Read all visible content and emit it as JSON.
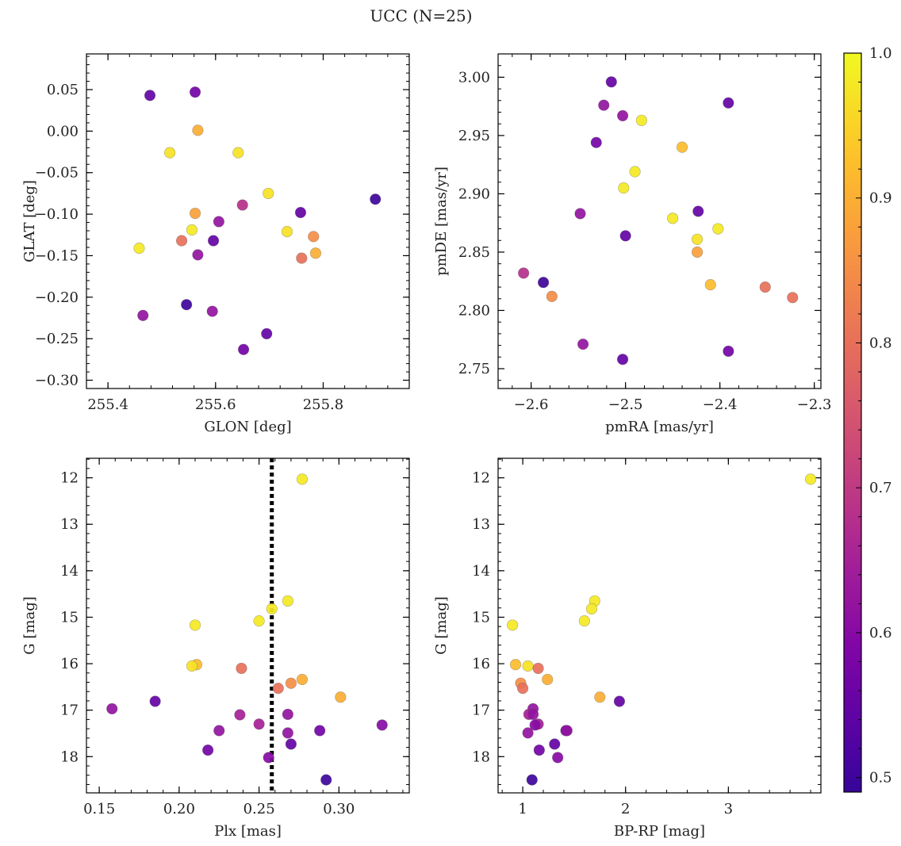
{
  "figure": {
    "title": "UCC (N=25)"
  },
  "colorbar": {
    "min": 0.49,
    "max": 1.0,
    "ticks": [
      "0.5",
      "0.6",
      "0.7",
      "0.8",
      "0.9",
      "1.0"
    ]
  },
  "chart_data": [
    {
      "type": "scatter",
      "xlabel": "GLON [deg]",
      "ylabel": "GLAT [deg]",
      "xlim": [
        255.36,
        255.96
      ],
      "ylim": [
        -0.31,
        0.093
      ],
      "xticks": [
        "255.4",
        "255.6",
        "255.8"
      ],
      "yticks": [
        "0.05",
        "0.00",
        "−0.05",
        "−0.10",
        "−0.15",
        "−0.20",
        "−0.25",
        "−0.30"
      ],
      "points": [
        {
          "x": 255.478,
          "y": 0.043,
          "c": 0.55
        },
        {
          "x": 255.562,
          "y": 0.047,
          "c": 0.57
        },
        {
          "x": 255.567,
          "y": 0.001,
          "c": 0.9
        },
        {
          "x": 255.515,
          "y": -0.026,
          "c": 0.97
        },
        {
          "x": 255.642,
          "y": -0.026,
          "c": 0.97
        },
        {
          "x": 255.698,
          "y": -0.075,
          "c": 0.97
        },
        {
          "x": 255.897,
          "y": -0.082,
          "c": 0.5
        },
        {
          "x": 255.65,
          "y": -0.089,
          "c": 0.68
        },
        {
          "x": 255.562,
          "y": -0.099,
          "c": 0.88
        },
        {
          "x": 255.758,
          "y": -0.098,
          "c": 0.55
        },
        {
          "x": 255.606,
          "y": -0.109,
          "c": 0.62
        },
        {
          "x": 255.556,
          "y": -0.119,
          "c": 0.98
        },
        {
          "x": 255.733,
          "y": -0.121,
          "c": 0.97
        },
        {
          "x": 255.782,
          "y": -0.127,
          "c": 0.85
        },
        {
          "x": 255.537,
          "y": -0.132,
          "c": 0.8
        },
        {
          "x": 255.596,
          "y": -0.132,
          "c": 0.55
        },
        {
          "x": 255.458,
          "y": -0.141,
          "c": 0.98
        },
        {
          "x": 255.786,
          "y": -0.147,
          "c": 0.9
        },
        {
          "x": 255.567,
          "y": -0.149,
          "c": 0.62
        },
        {
          "x": 255.76,
          "y": -0.153,
          "c": 0.8
        },
        {
          "x": 255.546,
          "y": -0.209,
          "c": 0.5
        },
        {
          "x": 255.594,
          "y": -0.217,
          "c": 0.62
        },
        {
          "x": 255.465,
          "y": -0.222,
          "c": 0.62
        },
        {
          "x": 255.695,
          "y": -0.244,
          "c": 0.55
        },
        {
          "x": 255.652,
          "y": -0.263,
          "c": 0.57
        }
      ]
    },
    {
      "type": "scatter",
      "xlabel": "pmRA [mas/yr]",
      "ylabel": "pmDE [mas/yr]",
      "xlim": [
        -2.635,
        -2.293
      ],
      "ylim": [
        2.733,
        3.02
      ],
      "xticks": [
        "−2.6",
        "−2.5",
        "−2.4",
        "−2.3"
      ],
      "yticks": [
        "3.00",
        "2.95",
        "2.90",
        "2.85",
        "2.80",
        "2.75"
      ],
      "points": [
        {
          "x": -2.515,
          "y": 2.996,
          "c": 0.55
        },
        {
          "x": -2.391,
          "y": 2.978,
          "c": 0.55
        },
        {
          "x": -2.523,
          "y": 2.976,
          "c": 0.62
        },
        {
          "x": -2.503,
          "y": 2.967,
          "c": 0.62
        },
        {
          "x": -2.483,
          "y": 2.963,
          "c": 0.98
        },
        {
          "x": -2.531,
          "y": 2.944,
          "c": 0.57
        },
        {
          "x": -2.44,
          "y": 2.94,
          "c": 0.92
        },
        {
          "x": -2.49,
          "y": 2.919,
          "c": 0.98
        },
        {
          "x": -2.502,
          "y": 2.905,
          "c": 0.98
        },
        {
          "x": -2.423,
          "y": 2.885,
          "c": 0.55
        },
        {
          "x": -2.548,
          "y": 2.883,
          "c": 0.62
        },
        {
          "x": -2.45,
          "y": 2.879,
          "c": 0.98
        },
        {
          "x": -2.402,
          "y": 2.87,
          "c": 0.98
        },
        {
          "x": -2.5,
          "y": 2.864,
          "c": 0.55
        },
        {
          "x": -2.424,
          "y": 2.861,
          "c": 0.97
        },
        {
          "x": -2.424,
          "y": 2.85,
          "c": 0.88
        },
        {
          "x": -2.608,
          "y": 2.832,
          "c": 0.68
        },
        {
          "x": -2.587,
          "y": 2.824,
          "c": 0.5
        },
        {
          "x": -2.41,
          "y": 2.822,
          "c": 0.92
        },
        {
          "x": -2.352,
          "y": 2.82,
          "c": 0.8
        },
        {
          "x": -2.578,
          "y": 2.812,
          "c": 0.85
        },
        {
          "x": -2.323,
          "y": 2.811,
          "c": 0.8
        },
        {
          "x": -2.545,
          "y": 2.771,
          "c": 0.62
        },
        {
          "x": -2.391,
          "y": 2.765,
          "c": 0.57
        },
        {
          "x": -2.503,
          "y": 2.758,
          "c": 0.55
        }
      ]
    },
    {
      "type": "scatter",
      "xlabel": "Plx [mas]",
      "ylabel": "G [mag]",
      "xlim": [
        0.142,
        0.344
      ],
      "ylim": [
        18.78,
        11.58
      ],
      "y_inverted": true,
      "vline": 0.258,
      "xticks": [
        "0.15",
        "0.20",
        "0.25",
        "0.30"
      ],
      "yticks": [
        "12",
        "13",
        "14",
        "15",
        "16",
        "17",
        "18"
      ],
      "points": [
        {
          "x": 0.277,
          "y": 12.03,
          "c": 0.98
        },
        {
          "x": 0.268,
          "y": 14.65,
          "c": 0.98
        },
        {
          "x": 0.258,
          "y": 14.82,
          "c": 0.98
        },
        {
          "x": 0.25,
          "y": 15.08,
          "c": 0.98
        },
        {
          "x": 0.21,
          "y": 15.17,
          "c": 0.98
        },
        {
          "x": 0.211,
          "y": 16.02,
          "c": 0.92
        },
        {
          "x": 0.208,
          "y": 16.05,
          "c": 0.97
        },
        {
          "x": 0.239,
          "y": 16.1,
          "c": 0.8
        },
        {
          "x": 0.277,
          "y": 16.34,
          "c": 0.9
        },
        {
          "x": 0.27,
          "y": 16.42,
          "c": 0.85
        },
        {
          "x": 0.262,
          "y": 16.53,
          "c": 0.8
        },
        {
          "x": 0.301,
          "y": 16.72,
          "c": 0.9
        },
        {
          "x": 0.185,
          "y": 16.81,
          "c": 0.55
        },
        {
          "x": 0.158,
          "y": 16.97,
          "c": 0.62
        },
        {
          "x": 0.268,
          "y": 17.09,
          "c": 0.62
        },
        {
          "x": 0.238,
          "y": 17.1,
          "c": 0.65
        },
        {
          "x": 0.25,
          "y": 17.3,
          "c": 0.65
        },
        {
          "x": 0.327,
          "y": 17.32,
          "c": 0.6
        },
        {
          "x": 0.225,
          "y": 17.44,
          "c": 0.62
        },
        {
          "x": 0.288,
          "y": 17.44,
          "c": 0.57
        },
        {
          "x": 0.268,
          "y": 17.49,
          "c": 0.62
        },
        {
          "x": 0.27,
          "y": 17.73,
          "c": 0.55
        },
        {
          "x": 0.218,
          "y": 17.86,
          "c": 0.57
        },
        {
          "x": 0.256,
          "y": 18.02,
          "c": 0.6
        },
        {
          "x": 0.292,
          "y": 18.5,
          "c": 0.5
        }
      ]
    },
    {
      "type": "scatter",
      "xlabel": "BP-RP [mag]",
      "ylabel": "G [mag]",
      "xlim": [
        0.76,
        3.9
      ],
      "ylim": [
        18.78,
        11.58
      ],
      "y_inverted": true,
      "xticks": [
        "1",
        "2",
        "3"
      ],
      "yticks": [
        "12",
        "13",
        "14",
        "15",
        "16",
        "17",
        "18"
      ],
      "points": [
        {
          "x": 3.8,
          "y": 12.03,
          "c": 0.98
        },
        {
          "x": 1.7,
          "y": 14.65,
          "c": 0.98
        },
        {
          "x": 1.67,
          "y": 14.82,
          "c": 0.98
        },
        {
          "x": 1.6,
          "y": 15.08,
          "c": 0.98
        },
        {
          "x": 0.9,
          "y": 15.17,
          "c": 0.98
        },
        {
          "x": 0.93,
          "y": 16.02,
          "c": 0.92
        },
        {
          "x": 1.05,
          "y": 16.05,
          "c": 0.97
        },
        {
          "x": 1.15,
          "y": 16.1,
          "c": 0.8
        },
        {
          "x": 1.24,
          "y": 16.34,
          "c": 0.9
        },
        {
          "x": 0.98,
          "y": 16.42,
          "c": 0.85
        },
        {
          "x": 1.0,
          "y": 16.53,
          "c": 0.8
        },
        {
          "x": 1.75,
          "y": 16.72,
          "c": 0.9
        },
        {
          "x": 1.94,
          "y": 16.81,
          "c": 0.55
        },
        {
          "x": 1.1,
          "y": 16.97,
          "c": 0.62
        },
        {
          "x": 1.06,
          "y": 17.09,
          "c": 0.65
        },
        {
          "x": 1.1,
          "y": 17.09,
          "c": 0.62
        },
        {
          "x": 1.15,
          "y": 17.3,
          "c": 0.65
        },
        {
          "x": 1.12,
          "y": 17.32,
          "c": 0.6
        },
        {
          "x": 1.42,
          "y": 17.44,
          "c": 0.57
        },
        {
          "x": 1.43,
          "y": 17.44,
          "c": 0.62
        },
        {
          "x": 1.05,
          "y": 17.49,
          "c": 0.62
        },
        {
          "x": 1.31,
          "y": 17.73,
          "c": 0.55
        },
        {
          "x": 1.16,
          "y": 17.86,
          "c": 0.57
        },
        {
          "x": 1.34,
          "y": 18.02,
          "c": 0.6
        },
        {
          "x": 1.09,
          "y": 18.5,
          "c": 0.5
        }
      ]
    }
  ]
}
